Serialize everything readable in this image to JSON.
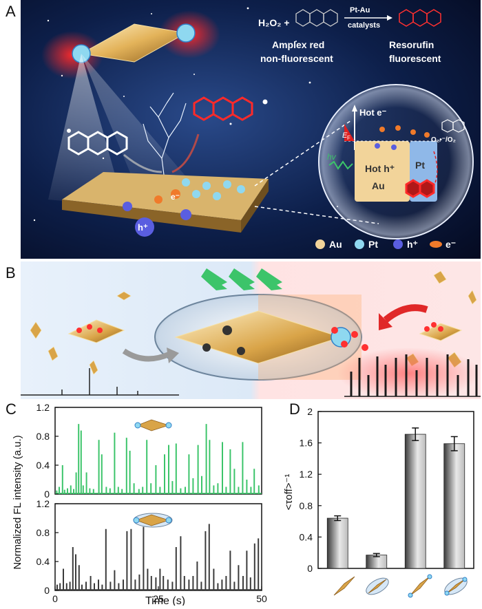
{
  "panels": {
    "a": "A",
    "b": "B",
    "c": "C",
    "d": "D"
  },
  "panelA": {
    "h2o2": "H₂O₂ +",
    "arrow_top": "Pt-Au",
    "arrow_bottom": "catalysts",
    "reactant_name1": "Amplex red",
    "reactant_name2": "non-fluorescent",
    "product_name1": "Resorufin",
    "product_name2": "fluorescent",
    "hot_e": "Hot e⁻",
    "ef": "E",
    "ef_sub": "F",
    "hv": "hv",
    "hot_h": "Hot h⁺",
    "au_block": "Au",
    "pt_block": "Pt",
    "o2_label": "O₂•⁻/O₂",
    "e_minus": "e⁻",
    "h_plus": "h⁺",
    "legend": [
      {
        "label": "Au",
        "color": "#f2d49a"
      },
      {
        "label": "Pt",
        "color": "#8fd8f0"
      },
      {
        "label": "h⁺",
        "color": "#5a5ee0"
      },
      {
        "label": "e⁻",
        "color": "#f07a2a"
      }
    ]
  },
  "chart_data": [
    {
      "type": "line",
      "panel": "C-top",
      "color": "#3cc46a",
      "xlim": [
        0,
        50
      ],
      "ylim": [
        0,
        1.2
      ],
      "yticks": [
        "0",
        "0.4",
        "0.8",
        "1.2"
      ],
      "peaks": [
        [
          0.4,
          0.05
        ],
        [
          1,
          0.1
        ],
        [
          1.8,
          0.4
        ],
        [
          2.3,
          0.06
        ],
        [
          3,
          0.08
        ],
        [
          3.8,
          0.12
        ],
        [
          4.5,
          0.07
        ],
        [
          5.1,
          0.3
        ],
        [
          5.7,
          0.97
        ],
        [
          6.3,
          0.88
        ],
        [
          6.8,
          0.12
        ],
        [
          7.6,
          0.3
        ],
        [
          8.4,
          0.08
        ],
        [
          9.3,
          0.07
        ],
        [
          10.6,
          0.75
        ],
        [
          11.3,
          0.55
        ],
        [
          12.4,
          0.1
        ],
        [
          13.3,
          0.08
        ],
        [
          14.4,
          0.85
        ],
        [
          15.3,
          0.1
        ],
        [
          16.2,
          0.07
        ],
        [
          17.3,
          0.78
        ],
        [
          18.1,
          0.6
        ],
        [
          19.1,
          0.15
        ],
        [
          20.3,
          0.07
        ],
        [
          21.2,
          0.1
        ],
        [
          22.2,
          0.75
        ],
        [
          23.2,
          0.15
        ],
        [
          24.4,
          0.4
        ],
        [
          25.4,
          0.1
        ],
        [
          26.5,
          0.55
        ],
        [
          27.5,
          0.68
        ],
        [
          28.4,
          0.18
        ],
        [
          29.3,
          0.7
        ],
        [
          30.4,
          0.08
        ],
        [
          31.5,
          0.1
        ],
        [
          32.4,
          0.55
        ],
        [
          33.4,
          0.22
        ],
        [
          34.6,
          0.68
        ],
        [
          35.5,
          0.25
        ],
        [
          36.6,
          0.97
        ],
        [
          37.4,
          0.75
        ],
        [
          38.4,
          0.12
        ],
        [
          39.4,
          0.15
        ],
        [
          40.5,
          0.72
        ],
        [
          41.4,
          0.1
        ],
        [
          42.4,
          0.62
        ],
        [
          43.4,
          0.35
        ],
        [
          44.4,
          0.1
        ],
        [
          45.4,
          0.72
        ],
        [
          46.4,
          0.2
        ],
        [
          47.4,
          0.1
        ],
        [
          48.2,
          0.35
        ],
        [
          49.3,
          0.12
        ]
      ]
    },
    {
      "type": "line",
      "panel": "C-bottom",
      "color": "#3a3a3a",
      "xlabel": "Time (s)",
      "ylabel": "Normalized FL intensity (a.u.)",
      "xlim": [
        0,
        50
      ],
      "ylim": [
        0,
        1.2
      ],
      "xticks": [
        "0",
        "25",
        "50"
      ],
      "yticks": [
        "0",
        "0.4",
        "0.8",
        "1.2"
      ],
      "peaks": [
        [
          0.5,
          0.08
        ],
        [
          1.2,
          0.1
        ],
        [
          2,
          0.3
        ],
        [
          2.8,
          0.1
        ],
        [
          3.6,
          0.12
        ],
        [
          4.3,
          0.6
        ],
        [
          5,
          0.5
        ],
        [
          5.8,
          0.35
        ],
        [
          6.5,
          0.08
        ],
        [
          7.5,
          0.12
        ],
        [
          8.6,
          0.2
        ],
        [
          9.5,
          0.1
        ],
        [
          10.5,
          0.15
        ],
        [
          11.4,
          0.08
        ],
        [
          12.3,
          0.85
        ],
        [
          13.4,
          0.12
        ],
        [
          14.4,
          0.28
        ],
        [
          15.4,
          0.1
        ],
        [
          16.5,
          0.15
        ],
        [
          17.4,
          0.82
        ],
        [
          18.4,
          0.85
        ],
        [
          19.4,
          0.15
        ],
        [
          20.4,
          0.22
        ],
        [
          21.4,
          0.88
        ],
        [
          22.4,
          0.3
        ],
        [
          23.3,
          0.2
        ],
        [
          24.4,
          0.18
        ],
        [
          25.4,
          0.3
        ],
        [
          26.2,
          0.2
        ],
        [
          27.3,
          0.15
        ],
        [
          28.4,
          0.12
        ],
        [
          29.3,
          0.6
        ],
        [
          30.4,
          0.75
        ],
        [
          31.3,
          0.2
        ],
        [
          32.4,
          0.15
        ],
        [
          33.4,
          0.2
        ],
        [
          34.4,
          0.4
        ],
        [
          35.4,
          0.12
        ],
        [
          36.4,
          0.82
        ],
        [
          37.3,
          0.92
        ],
        [
          38.4,
          0.3
        ],
        [
          39.4,
          0.1
        ],
        [
          40.4,
          0.15
        ],
        [
          41.4,
          0.2
        ],
        [
          42.4,
          0.55
        ],
        [
          43.4,
          0.12
        ],
        [
          44.4,
          0.35
        ],
        [
          45.5,
          0.2
        ],
        [
          46.4,
          0.55
        ],
        [
          47.3,
          0.18
        ],
        [
          48.3,
          0.65
        ],
        [
          49.2,
          0.72
        ]
      ]
    },
    {
      "type": "bar",
      "panel": "D",
      "ylabel": "<τoff>⁻¹",
      "ylim": [
        0,
        2
      ],
      "yticks": [
        "0",
        "0.4",
        "0.8",
        "1.2",
        "1.6",
        "2"
      ],
      "values": [
        0.64,
        0.17,
        1.71,
        1.59
      ],
      "errors": [
        0.03,
        0.02,
        0.08,
        0.09
      ],
      "category_icons": [
        "au-bipyramid",
        "coated-au-bipyramid",
        "pt-au-bipyramid",
        "coated-pt-au-bipyramid"
      ]
    }
  ]
}
